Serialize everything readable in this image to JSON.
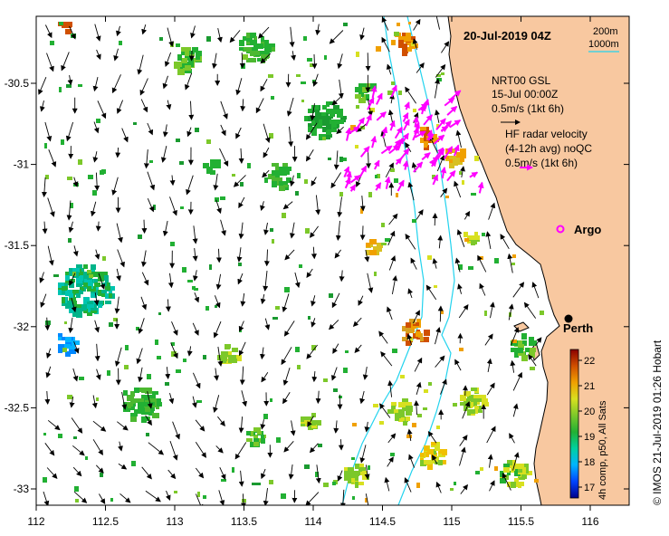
{
  "map": {
    "date_label": "20-Jul-2019 04Z",
    "colors": {
      "land": "#f8c8a0",
      "ocean": "#ffffff",
      "contour": "#22d3ee",
      "radar": "#ff00ff",
      "arrow": "#000000"
    }
  },
  "axes": {
    "x_ticks": [
      "112",
      "112.5",
      "113",
      "113.5",
      "114",
      "114.5",
      "115",
      "115.5",
      "116"
    ],
    "y_ticks": [
      "-30.5",
      "-31",
      "-31.5",
      "-32",
      "-32.5",
      "-33"
    ]
  },
  "legend": {
    "depth_200": "200m",
    "depth_1000": "1000m",
    "nrt_line1": "NRT00 GSL",
    "nrt_line2": "15-Jul 00:00Z",
    "nrt_scale": "0.5m/s (1kt 6h)",
    "hf_line1": "HF radar velocity",
    "hf_line2": "(4-12h avg) noQC",
    "hf_scale": "0.5m/s (1kt 6h)",
    "argo": "Argo"
  },
  "places": {
    "perth": "Perth"
  },
  "colorbar": {
    "ticks": [
      "22",
      "21",
      "20",
      "19",
      "18",
      "17"
    ],
    "label": "4h comp, p50, All Sats",
    "stops": [
      "#00008b",
      "#0044ff",
      "#00b4ff",
      "#00d0a0",
      "#22b033",
      "#7cc82a",
      "#d8e020",
      "#f0a000",
      "#d05000",
      "#8b0000"
    ]
  },
  "credit": "© IMOS 21-Jul-2019 01:26 Hobart"
}
